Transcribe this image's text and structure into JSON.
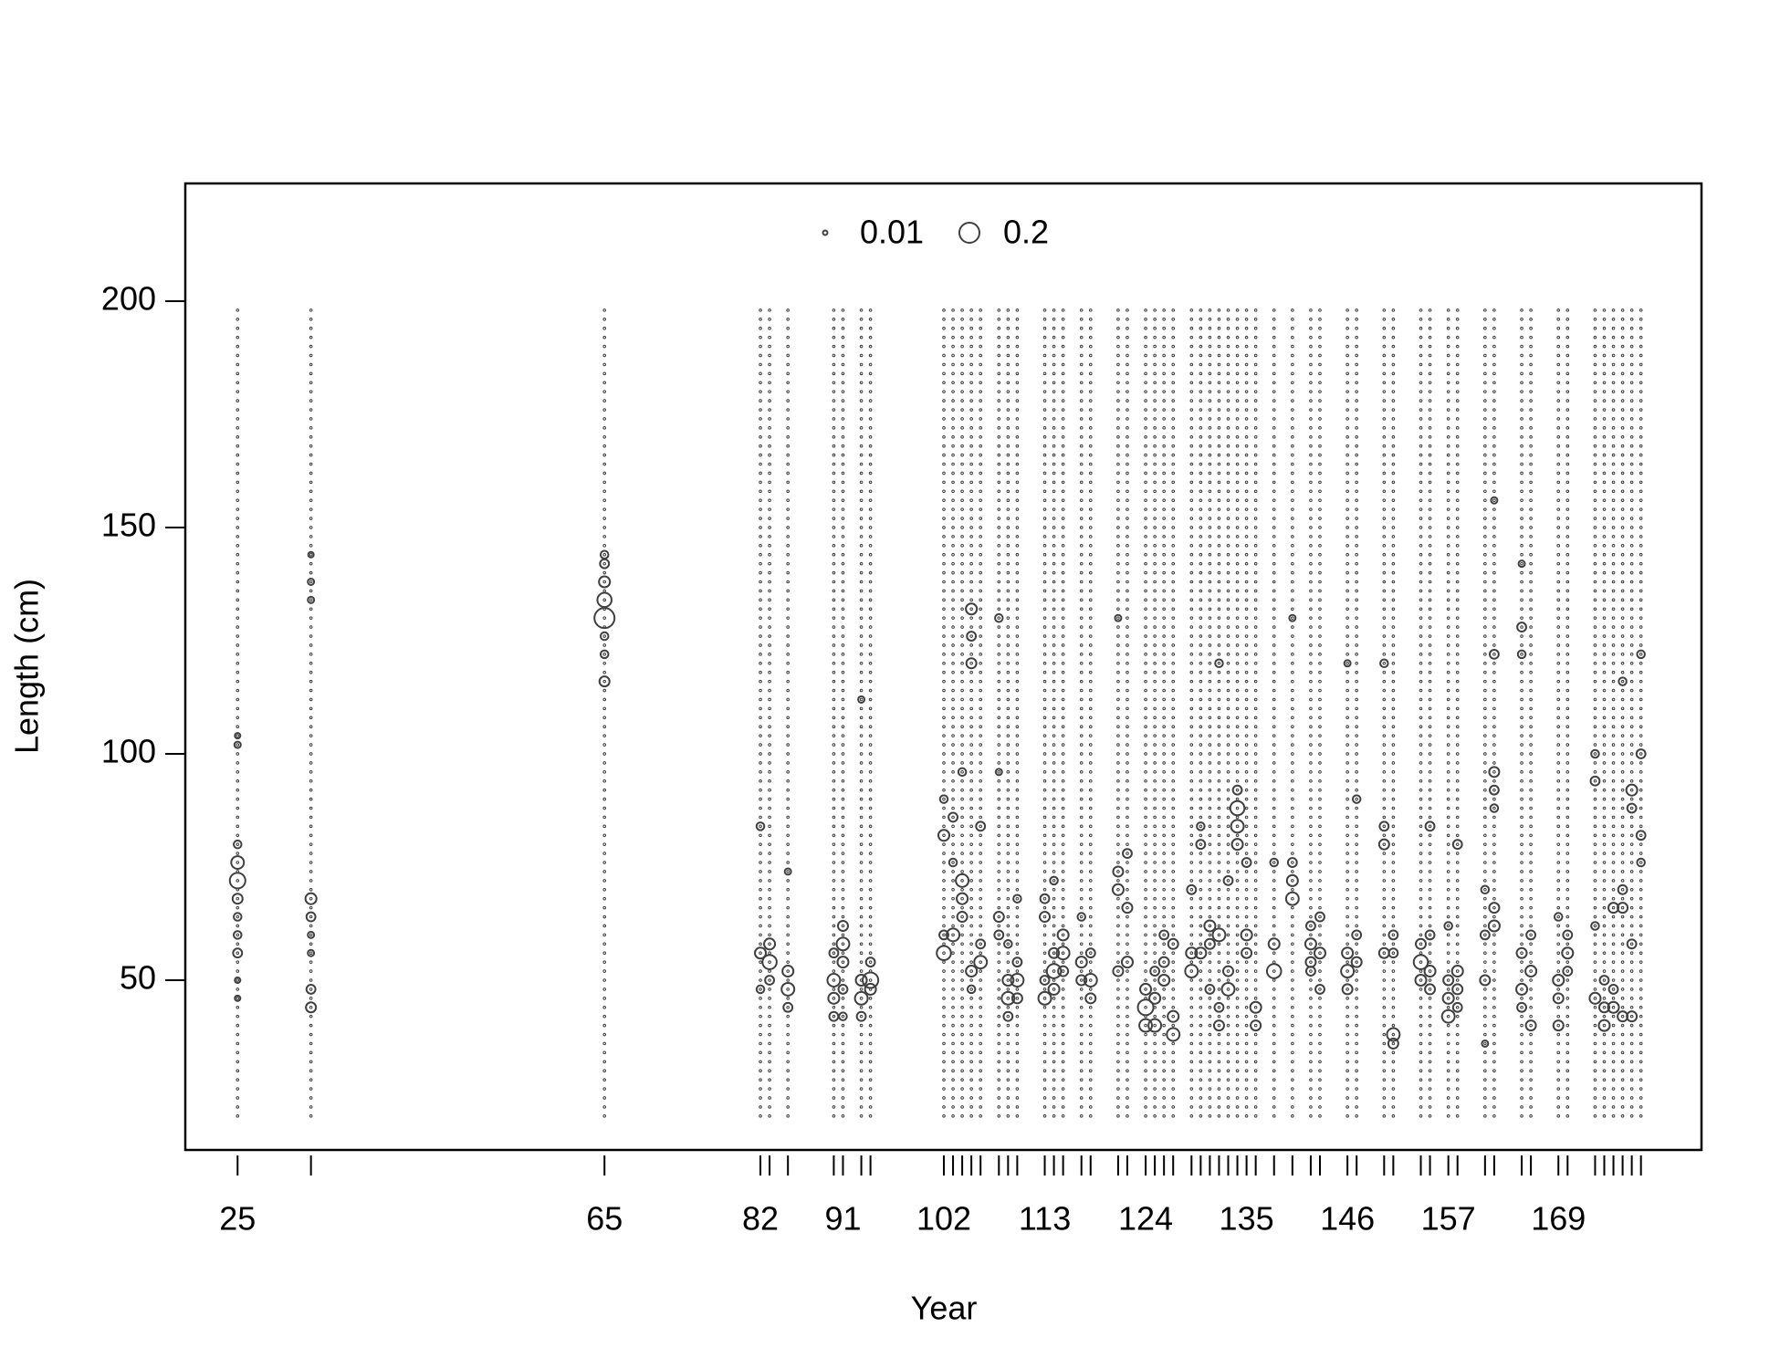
{
  "chart_data": {
    "type": "bubble",
    "xlabel": "Year",
    "ylabel": "Length (cm)",
    "xlim": [
      19.3,
      184.6
    ],
    "ylim": [
      12.5,
      226
    ],
    "xticks": [
      25,
      65,
      82,
      91,
      102,
      113,
      124,
      135,
      146,
      157,
      169
    ],
    "yticks": [
      50,
      100,
      150,
      200
    ],
    "x": [
      25,
      33,
      65,
      82,
      83,
      85,
      90,
      91,
      93,
      94,
      102,
      103,
      104,
      105,
      106,
      108,
      109,
      110,
      113,
      114,
      115,
      117,
      118,
      121,
      122,
      124,
      125,
      126,
      127,
      129,
      130,
      131,
      132,
      133,
      134,
      135,
      136,
      138,
      140,
      142,
      143,
      146,
      147,
      150,
      151,
      154,
      155,
      157,
      158,
      161,
      162,
      165,
      166,
      169,
      170,
      173,
      174,
      175,
      176,
      177,
      178
    ],
    "length_bins": [
      20,
      22,
      24,
      26,
      28,
      30,
      32,
      34,
      36,
      38,
      40,
      42,
      44,
      46,
      48,
      50,
      52,
      54,
      56,
      58,
      60,
      62,
      64,
      66,
      68,
      70,
      72,
      74,
      76,
      78,
      80,
      82,
      84,
      86,
      88,
      90,
      92,
      94,
      96,
      98,
      100,
      102,
      104,
      106,
      108,
      110,
      112,
      114,
      116,
      118,
      120,
      122,
      124,
      126,
      128,
      130,
      132,
      134,
      136,
      138,
      140,
      142,
      144,
      146,
      148,
      150,
      152,
      154,
      156,
      158,
      160,
      162,
      164,
      166,
      168,
      170,
      172,
      174,
      176,
      178,
      180,
      182,
      184,
      186,
      188,
      190,
      192,
      194,
      196,
      198
    ],
    "legend": {
      "sizes": [
        0.01,
        0.2
      ]
    },
    "color": "#404040",
    "points": [
      [
        25,
        72,
        0.12
      ],
      [
        25,
        76,
        0.08
      ],
      [
        25,
        68,
        0.05
      ],
      [
        25,
        80,
        0.03
      ],
      [
        25,
        60,
        0.03
      ],
      [
        25,
        56,
        0.04
      ],
      [
        25,
        102,
        0.02
      ],
      [
        25,
        104,
        0.015
      ],
      [
        25,
        46,
        0.015
      ],
      [
        25,
        50,
        0.015
      ],
      [
        25,
        64,
        0.03
      ],
      [
        33,
        68,
        0.06
      ],
      [
        33,
        64,
        0.04
      ],
      [
        33,
        44,
        0.05
      ],
      [
        33,
        48,
        0.04
      ],
      [
        33,
        138,
        0.02
      ],
      [
        33,
        134,
        0.02
      ],
      [
        33,
        144,
        0.015
      ],
      [
        33,
        56,
        0.02
      ],
      [
        33,
        60,
        0.02
      ],
      [
        65,
        130,
        0.2
      ],
      [
        65,
        134,
        0.1
      ],
      [
        65,
        138,
        0.06
      ],
      [
        65,
        142,
        0.04
      ],
      [
        65,
        116,
        0.05
      ],
      [
        65,
        122,
        0.03
      ],
      [
        65,
        144,
        0.03
      ],
      [
        65,
        126,
        0.03
      ],
      [
        82,
        56,
        0.06
      ],
      [
        82,
        84,
        0.03
      ],
      [
        82,
        48,
        0.03
      ],
      [
        83,
        54,
        0.1
      ],
      [
        83,
        58,
        0.06
      ],
      [
        83,
        50,
        0.04
      ],
      [
        85,
        48,
        0.08
      ],
      [
        85,
        52,
        0.06
      ],
      [
        85,
        44,
        0.04
      ],
      [
        85,
        74,
        0.02
      ],
      [
        90,
        50,
        0.08
      ],
      [
        90,
        46,
        0.06
      ],
      [
        90,
        42,
        0.04
      ],
      [
        90,
        56,
        0.04
      ],
      [
        91,
        58,
        0.08
      ],
      [
        91,
        54,
        0.06
      ],
      [
        91,
        62,
        0.05
      ],
      [
        91,
        48,
        0.04
      ],
      [
        91,
        42,
        0.03
      ],
      [
        93,
        46,
        0.08
      ],
      [
        93,
        50,
        0.06
      ],
      [
        93,
        42,
        0.04
      ],
      [
        93,
        112,
        0.02
      ],
      [
        94,
        50,
        0.12
      ],
      [
        94,
        48,
        0.06
      ],
      [
        94,
        54,
        0.04
      ],
      [
        102,
        56,
        0.1
      ],
      [
        102,
        82,
        0.06
      ],
      [
        102,
        60,
        0.04
      ],
      [
        102,
        90,
        0.03
      ],
      [
        103,
        60,
        0.08
      ],
      [
        103,
        86,
        0.04
      ],
      [
        103,
        76,
        0.03
      ],
      [
        104,
        72,
        0.08
      ],
      [
        104,
        68,
        0.06
      ],
      [
        104,
        64,
        0.05
      ],
      [
        104,
        96,
        0.03
      ],
      [
        105,
        52,
        0.06
      ],
      [
        105,
        132,
        0.06
      ],
      [
        105,
        126,
        0.04
      ],
      [
        105,
        120,
        0.05
      ],
      [
        105,
        48,
        0.03
      ],
      [
        106,
        54,
        0.08
      ],
      [
        106,
        84,
        0.04
      ],
      [
        106,
        58,
        0.04
      ],
      [
        108,
        64,
        0.05
      ],
      [
        108,
        60,
        0.04
      ],
      [
        108,
        130,
        0.03
      ],
      [
        108,
        96,
        0.02
      ],
      [
        109,
        46,
        0.08
      ],
      [
        109,
        50,
        0.06
      ],
      [
        109,
        42,
        0.04
      ],
      [
        109,
        58,
        0.03
      ],
      [
        110,
        50,
        0.08
      ],
      [
        110,
        46,
        0.05
      ],
      [
        110,
        54,
        0.04
      ],
      [
        110,
        68,
        0.03
      ],
      [
        113,
        46,
        0.08
      ],
      [
        113,
        64,
        0.05
      ],
      [
        113,
        68,
        0.04
      ],
      [
        113,
        50,
        0.04
      ],
      [
        114,
        52,
        0.1
      ],
      [
        114,
        48,
        0.06
      ],
      [
        114,
        56,
        0.05
      ],
      [
        114,
        72,
        0.03
      ],
      [
        115,
        56,
        0.08
      ],
      [
        115,
        60,
        0.06
      ],
      [
        115,
        52,
        0.05
      ],
      [
        117,
        54,
        0.06
      ],
      [
        117,
        50,
        0.05
      ],
      [
        117,
        64,
        0.03
      ],
      [
        118,
        50,
        0.08
      ],
      [
        118,
        46,
        0.05
      ],
      [
        118,
        56,
        0.04
      ],
      [
        121,
        70,
        0.06
      ],
      [
        121,
        74,
        0.05
      ],
      [
        121,
        52,
        0.05
      ],
      [
        121,
        130,
        0.02
      ],
      [
        122,
        54,
        0.06
      ],
      [
        122,
        66,
        0.05
      ],
      [
        122,
        78,
        0.04
      ],
      [
        124,
        44,
        0.12
      ],
      [
        124,
        40,
        0.08
      ],
      [
        124,
        48,
        0.06
      ],
      [
        125,
        40,
        0.08
      ],
      [
        125,
        46,
        0.06
      ],
      [
        125,
        52,
        0.04
      ],
      [
        126,
        50,
        0.06
      ],
      [
        126,
        54,
        0.05
      ],
      [
        126,
        60,
        0.04
      ],
      [
        127,
        38,
        0.08
      ],
      [
        127,
        42,
        0.06
      ],
      [
        127,
        58,
        0.05
      ],
      [
        129,
        52,
        0.08
      ],
      [
        129,
        56,
        0.06
      ],
      [
        129,
        70,
        0.04
      ],
      [
        130,
        56,
        0.06
      ],
      [
        130,
        80,
        0.04
      ],
      [
        130,
        84,
        0.03
      ],
      [
        131,
        62,
        0.06
      ],
      [
        131,
        58,
        0.05
      ],
      [
        131,
        48,
        0.04
      ],
      [
        132,
        60,
        0.08
      ],
      [
        132,
        120,
        0.03
      ],
      [
        132,
        44,
        0.04
      ],
      [
        132,
        40,
        0.05
      ],
      [
        133,
        48,
        0.08
      ],
      [
        133,
        52,
        0.05
      ],
      [
        133,
        72,
        0.04
      ],
      [
        134,
        88,
        0.1
      ],
      [
        134,
        84,
        0.08
      ],
      [
        134,
        80,
        0.06
      ],
      [
        134,
        92,
        0.04
      ],
      [
        135,
        60,
        0.06
      ],
      [
        135,
        56,
        0.05
      ],
      [
        135,
        76,
        0.04
      ],
      [
        136,
        44,
        0.06
      ],
      [
        136,
        40,
        0.05
      ],
      [
        138,
        52,
        0.1
      ],
      [
        138,
        58,
        0.06
      ],
      [
        138,
        76,
        0.03
      ],
      [
        140,
        68,
        0.08
      ],
      [
        140,
        72,
        0.06
      ],
      [
        140,
        76,
        0.04
      ],
      [
        140,
        130,
        0.02
      ],
      [
        142,
        58,
        0.06
      ],
      [
        142,
        54,
        0.05
      ],
      [
        142,
        62,
        0.04
      ],
      [
        142,
        52,
        0.04
      ],
      [
        143,
        56,
        0.06
      ],
      [
        143,
        64,
        0.04
      ],
      [
        143,
        48,
        0.04
      ],
      [
        146,
        52,
        0.08
      ],
      [
        146,
        56,
        0.06
      ],
      [
        146,
        48,
        0.05
      ],
      [
        146,
        120,
        0.02
      ],
      [
        147,
        54,
        0.05
      ],
      [
        147,
        60,
        0.04
      ],
      [
        147,
        90,
        0.03
      ],
      [
        150,
        80,
        0.05
      ],
      [
        150,
        84,
        0.04
      ],
      [
        150,
        56,
        0.05
      ],
      [
        150,
        120,
        0.03
      ],
      [
        151,
        38,
        0.08
      ],
      [
        151,
        36,
        0.05
      ],
      [
        151,
        60,
        0.04
      ],
      [
        151,
        56,
        0.04
      ],
      [
        154,
        54,
        0.1
      ],
      [
        154,
        50,
        0.06
      ],
      [
        154,
        58,
        0.05
      ],
      [
        155,
        52,
        0.06
      ],
      [
        155,
        48,
        0.05
      ],
      [
        155,
        84,
        0.04
      ],
      [
        155,
        60,
        0.04
      ],
      [
        157,
        42,
        0.08
      ],
      [
        157,
        46,
        0.06
      ],
      [
        157,
        50,
        0.05
      ],
      [
        157,
        62,
        0.03
      ],
      [
        158,
        52,
        0.06
      ],
      [
        158,
        48,
        0.05
      ],
      [
        158,
        80,
        0.04
      ],
      [
        158,
        44,
        0.04
      ],
      [
        161,
        50,
        0.05
      ],
      [
        161,
        60,
        0.04
      ],
      [
        161,
        70,
        0.03
      ],
      [
        161,
        36,
        0.02
      ],
      [
        162,
        62,
        0.06
      ],
      [
        162,
        66,
        0.05
      ],
      [
        162,
        96,
        0.05
      ],
      [
        162,
        92,
        0.04
      ],
      [
        162,
        122,
        0.04
      ],
      [
        162,
        88,
        0.03
      ],
      [
        162,
        156,
        0.02
      ],
      [
        165,
        56,
        0.05
      ],
      [
        165,
        48,
        0.06
      ],
      [
        165,
        44,
        0.04
      ],
      [
        165,
        128,
        0.04
      ],
      [
        165,
        122,
        0.03
      ],
      [
        165,
        142,
        0.02
      ],
      [
        166,
        52,
        0.06
      ],
      [
        166,
        40,
        0.05
      ],
      [
        166,
        60,
        0.04
      ],
      [
        169,
        50,
        0.06
      ],
      [
        169,
        40,
        0.05
      ],
      [
        169,
        46,
        0.05
      ],
      [
        169,
        64,
        0.03
      ],
      [
        170,
        56,
        0.06
      ],
      [
        170,
        60,
        0.04
      ],
      [
        170,
        52,
        0.04
      ],
      [
        173,
        46,
        0.06
      ],
      [
        173,
        94,
        0.04
      ],
      [
        173,
        100,
        0.03
      ],
      [
        173,
        62,
        0.03
      ],
      [
        174,
        40,
        0.06
      ],
      [
        174,
        44,
        0.05
      ],
      [
        174,
        50,
        0.04
      ],
      [
        175,
        44,
        0.06
      ],
      [
        175,
        66,
        0.05
      ],
      [
        175,
        48,
        0.04
      ],
      [
        176,
        66,
        0.05
      ],
      [
        176,
        70,
        0.04
      ],
      [
        176,
        116,
        0.03
      ],
      [
        176,
        42,
        0.05
      ],
      [
        177,
        92,
        0.06
      ],
      [
        177,
        88,
        0.04
      ],
      [
        177,
        42,
        0.05
      ],
      [
        177,
        58,
        0.04
      ],
      [
        178,
        82,
        0.04
      ],
      [
        178,
        100,
        0.04
      ],
      [
        178,
        122,
        0.03
      ],
      [
        178,
        76,
        0.03
      ]
    ]
  }
}
